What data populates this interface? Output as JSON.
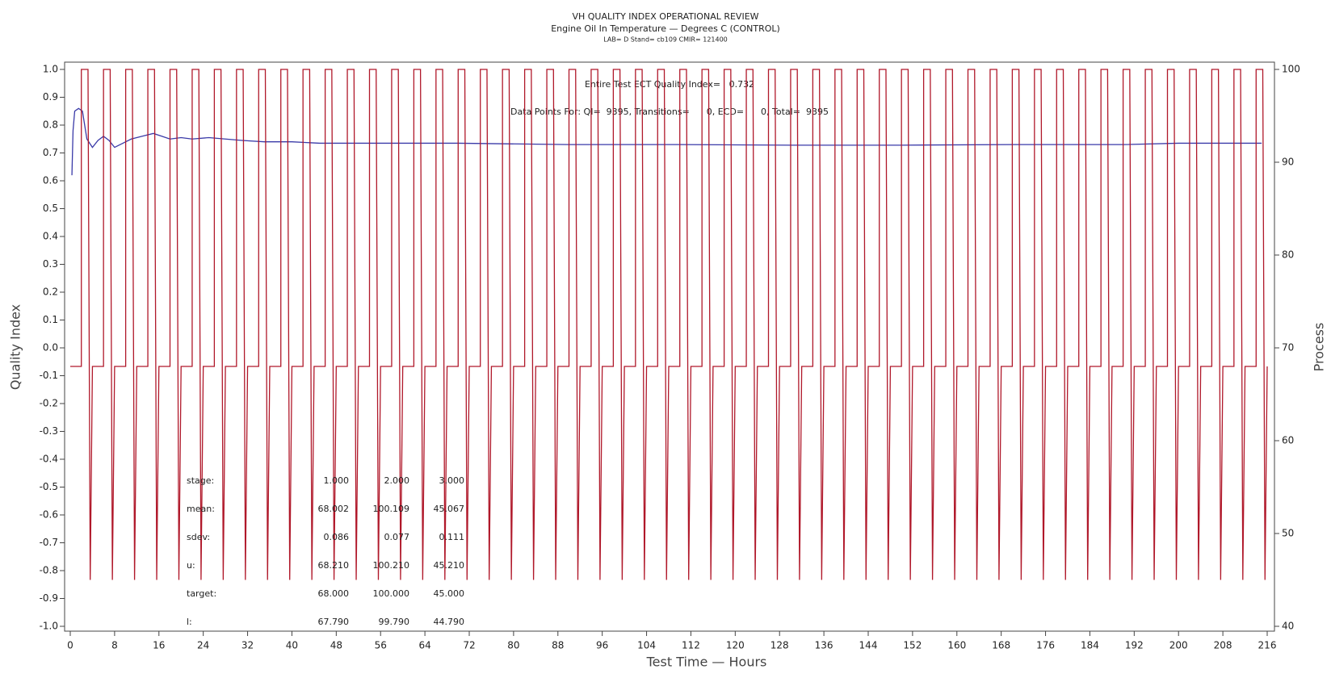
{
  "chart_data": {
    "type": "line",
    "title": "VH QUALITY INDEX OPERATIONAL REVIEW",
    "subtitle": "Engine Oil In Temperature — Degrees C (CONTROL)",
    "subtitle2": "LAB= D Stand= cb109 CMIR= 121400",
    "x_label": "Test Time — Hours",
    "y_label": "Quality Index",
    "y2_label": "Process",
    "annotations": [
      "Entire Test ECT Quality Index=   0.732",
      "Data Points For: QI=  9395, Transitions=      0, ECD=      0, Total=  9395"
    ],
    "stats": [
      {
        "label": "stage:",
        "values": [
          "1.000",
          "2.000",
          "3.000"
        ]
      },
      {
        "label": "mean:",
        "values": [
          "68.002",
          "100.109",
          "45.067"
        ]
      },
      {
        "label": "sdev:",
        "values": [
          "0.086",
          "0.077",
          "0.111"
        ]
      },
      {
        "label": "u:",
        "values": [
          "68.210",
          "100.210",
          "45.210"
        ]
      },
      {
        "label": "target:",
        "values": [
          "68.000",
          "100.000",
          "45.000"
        ]
      },
      {
        "label": "l:",
        "values": [
          "67.790",
          "99.790",
          "44.790"
        ]
      }
    ],
    "xlim": [
      0,
      216
    ],
    "xticks": [
      0,
      8,
      16,
      24,
      32,
      40,
      48,
      56,
      64,
      72,
      80,
      88,
      96,
      104,
      112,
      120,
      128,
      136,
      144,
      152,
      160,
      168,
      176,
      184,
      192,
      200,
      208,
      216
    ],
    "ylim": [
      -1,
      1
    ],
    "yticks": [
      {
        "value": 1,
        "label": "1.0"
      },
      0.9,
      0.8,
      0.7,
      0.6,
      0.5,
      0.4,
      0.3,
      0.2,
      0.1,
      {
        "value": 0,
        "label": "0.0"
      },
      -0.1,
      -0.2,
      -0.3,
      -0.4,
      -0.5,
      -0.6,
      -0.7,
      -0.8,
      -0.9,
      {
        "value": -1,
        "label": "-1.0"
      }
    ],
    "y2lim": [
      40,
      100
    ],
    "y2ticks": [
      40,
      50,
      60,
      70,
      80,
      90,
      100
    ],
    "series": [
      {
        "color": "#3a3aa8",
        "x": [
          0.3,
          0.5,
          0.8,
          1.5,
          2.2,
          3,
          4,
          5,
          6,
          7,
          8,
          9.5,
          11,
          13,
          15,
          16.5,
          18,
          20,
          22,
          25,
          28,
          31,
          35,
          40,
          45,
          55,
          70,
          90,
          110,
          130,
          150,
          170,
          190,
          200,
          215
        ],
        "values": [
          0.62,
          0.78,
          0.85,
          0.86,
          0.85,
          0.75,
          0.72,
          0.745,
          0.76,
          0.745,
          0.72,
          0.735,
          0.75,
          0.76,
          0.77,
          0.76,
          0.75,
          0.755,
          0.75,
          0.755,
          0.75,
          0.745,
          0.74,
          0.74,
          0.735,
          0.735,
          0.735,
          0.73,
          0.73,
          0.728,
          0.728,
          0.73,
          0.73,
          0.735,
          0.735
        ]
      },
      {
        "color": "#b0182a",
        "axis": "y2",
        "x": [
          0,
          2,
          2,
          3.2,
          3.6,
          4,
          6,
          6,
          7.2,
          7.6,
          8,
          10,
          10,
          11.2,
          11.6,
          12,
          14,
          14,
          15.2,
          15.6,
          16,
          18,
          18,
          19.2,
          19.6,
          20,
          22,
          22,
          23.2,
          23.6,
          24,
          26,
          26,
          27.2,
          27.6,
          28,
          30,
          30,
          31.2,
          31.6,
          32,
          34,
          34,
          35.2,
          35.6,
          36,
          38,
          38,
          39.2,
          39.6,
          40,
          42,
          42,
          43.2,
          43.6,
          44,
          46,
          46,
          47.2,
          47.6,
          48,
          50,
          50,
          51.2,
          51.6,
          52,
          54,
          54,
          55.2,
          55.6,
          56,
          58,
          58,
          59.2,
          59.6,
          60,
          62,
          62,
          63.2,
          63.6,
          64,
          66,
          66,
          67.2,
          67.6,
          68,
          70,
          70,
          71.2,
          71.6,
          72,
          74,
          74,
          75.2,
          75.6,
          76,
          78,
          78,
          79.2,
          79.6,
          80,
          82,
          82,
          83.2,
          83.6,
          84,
          86,
          86,
          87.2,
          87.6,
          88,
          90,
          90,
          91.2,
          91.6,
          92,
          94,
          94,
          95.2,
          95.6,
          96,
          98,
          98,
          99.2,
          99.6,
          100,
          102,
          102,
          103.2,
          103.6,
          104,
          106,
          106,
          107.2,
          107.6,
          108,
          110,
          110,
          111.2,
          111.6,
          112,
          114,
          114,
          115.2,
          115.6,
          116,
          118,
          118,
          119.2,
          119.6,
          120,
          122,
          122,
          123.2,
          123.6,
          124,
          126,
          126,
          127.2,
          127.6,
          128,
          130,
          130,
          131.2,
          131.6,
          132,
          134,
          134,
          135.2,
          135.6,
          136,
          138,
          138,
          139.2,
          139.6,
          140,
          142,
          142,
          143.2,
          143.6,
          144,
          146,
          146,
          147.2,
          147.6,
          148,
          150,
          150,
          151.2,
          151.6,
          152,
          154,
          154,
          155.2,
          155.6,
          156,
          158,
          158,
          159.2,
          159.6,
          160,
          162,
          162,
          163.2,
          163.6,
          164,
          166,
          166,
          167.2,
          167.6,
          168,
          170,
          170,
          171.2,
          171.6,
          172,
          174,
          174,
          175.2,
          175.6,
          176,
          178,
          178,
          179.2,
          179.6,
          180,
          182,
          182,
          183.2,
          183.6,
          184,
          186,
          186,
          187.2,
          187.6,
          188,
          190,
          190,
          191.2,
          191.6,
          192,
          194,
          194,
          195.2,
          195.6,
          196,
          198,
          198,
          199.2,
          199.6,
          200,
          202,
          202,
          203.2,
          203.6,
          204,
          206,
          206,
          207.2,
          207.6,
          208,
          210,
          210,
          211.2,
          211.6,
          212,
          214,
          214,
          215.2,
          215.6,
          216
        ],
        "values": [
          68,
          68,
          100,
          100,
          45,
          68,
          68,
          100,
          100,
          45,
          68,
          68,
          100,
          100,
          45,
          68,
          68,
          100,
          100,
          45,
          68,
          68,
          100,
          100,
          45,
          68,
          68,
          100,
          100,
          45,
          68,
          68,
          100,
          100,
          45,
          68,
          68,
          100,
          100,
          45,
          68,
          68,
          100,
          100,
          45,
          68,
          68,
          100,
          100,
          45,
          68,
          68,
          100,
          100,
          45,
          68,
          68,
          100,
          100,
          45,
          68,
          68,
          100,
          100,
          45,
          68,
          68,
          100,
          100,
          45,
          68,
          68,
          100,
          100,
          45,
          68,
          68,
          100,
          100,
          45,
          68,
          68,
          100,
          100,
          45,
          68,
          68,
          100,
          100,
          45,
          68,
          68,
          100,
          100,
          45,
          68,
          68,
          100,
          100,
          45,
          68,
          68,
          100,
          100,
          45,
          68,
          68,
          100,
          100,
          45,
          68,
          68,
          100,
          100,
          45,
          68,
          68,
          100,
          100,
          45,
          68,
          68,
          100,
          100,
          45,
          68,
          68,
          100,
          100,
          45,
          68,
          68,
          100,
          100,
          45,
          68,
          68,
          100,
          100,
          45,
          68,
          68,
          100,
          100,
          45,
          68,
          68,
          100,
          100,
          45,
          68,
          68,
          100,
          100,
          45,
          68,
          68,
          100,
          100,
          45,
          68,
          68,
          100,
          100,
          45,
          68,
          68,
          100,
          100,
          45,
          68,
          68,
          100,
          100,
          45,
          68,
          68,
          100,
          100,
          45,
          68,
          68,
          100,
          100,
          45,
          68,
          68,
          100,
          100,
          45,
          68,
          68,
          100,
          100,
          45,
          68,
          68,
          100,
          100,
          45,
          68,
          68,
          100,
          100,
          45,
          68,
          68,
          100,
          100,
          45,
          68,
          68,
          100,
          100,
          45,
          68,
          68,
          100,
          100,
          45,
          68,
          68,
          100,
          100,
          45,
          68,
          68,
          100,
          100,
          45,
          68,
          68,
          100,
          100,
          45,
          68,
          68,
          100,
          100,
          45,
          68,
          68,
          100,
          100,
          45,
          68,
          68,
          100,
          100,
          45,
          68,
          68,
          100,
          100,
          45,
          68,
          68,
          100,
          100,
          45,
          68,
          68,
          100,
          100,
          45,
          68,
          68,
          100,
          100,
          45,
          68
        ]
      }
    ]
  }
}
